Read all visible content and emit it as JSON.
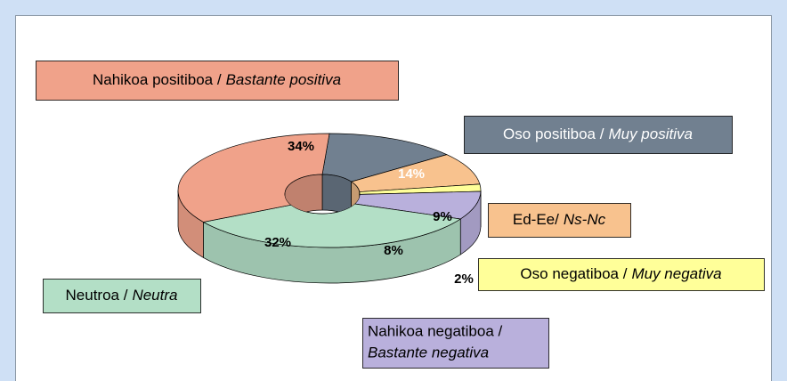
{
  "chart_data": {
    "type": "donut3d",
    "categories": [
      [
        "Oso positiboa /",
        "Muy positiva"
      ],
      [
        "Ed-Ee/",
        "Ns-Nc"
      ],
      [
        "Oso negatiboa /",
        "Muy negativa"
      ],
      [
        "Nahikoa negatiboa /",
        "Bastante negativa"
      ],
      [
        "Neutroa /",
        "Neutra"
      ],
      [
        "Nahikoa positiboa /",
        "Bastante positiva"
      ]
    ],
    "values": [
      14,
      9,
      2,
      8,
      32,
      34
    ],
    "value_labels": [
      "14%",
      "9%",
      "2%",
      "8%",
      "32%",
      "34%"
    ],
    "colors": [
      "#718090",
      "#f8c28e",
      "#ffff99",
      "#b9b0dc",
      "#b3dfc6",
      "#f0a28a"
    ]
  }
}
